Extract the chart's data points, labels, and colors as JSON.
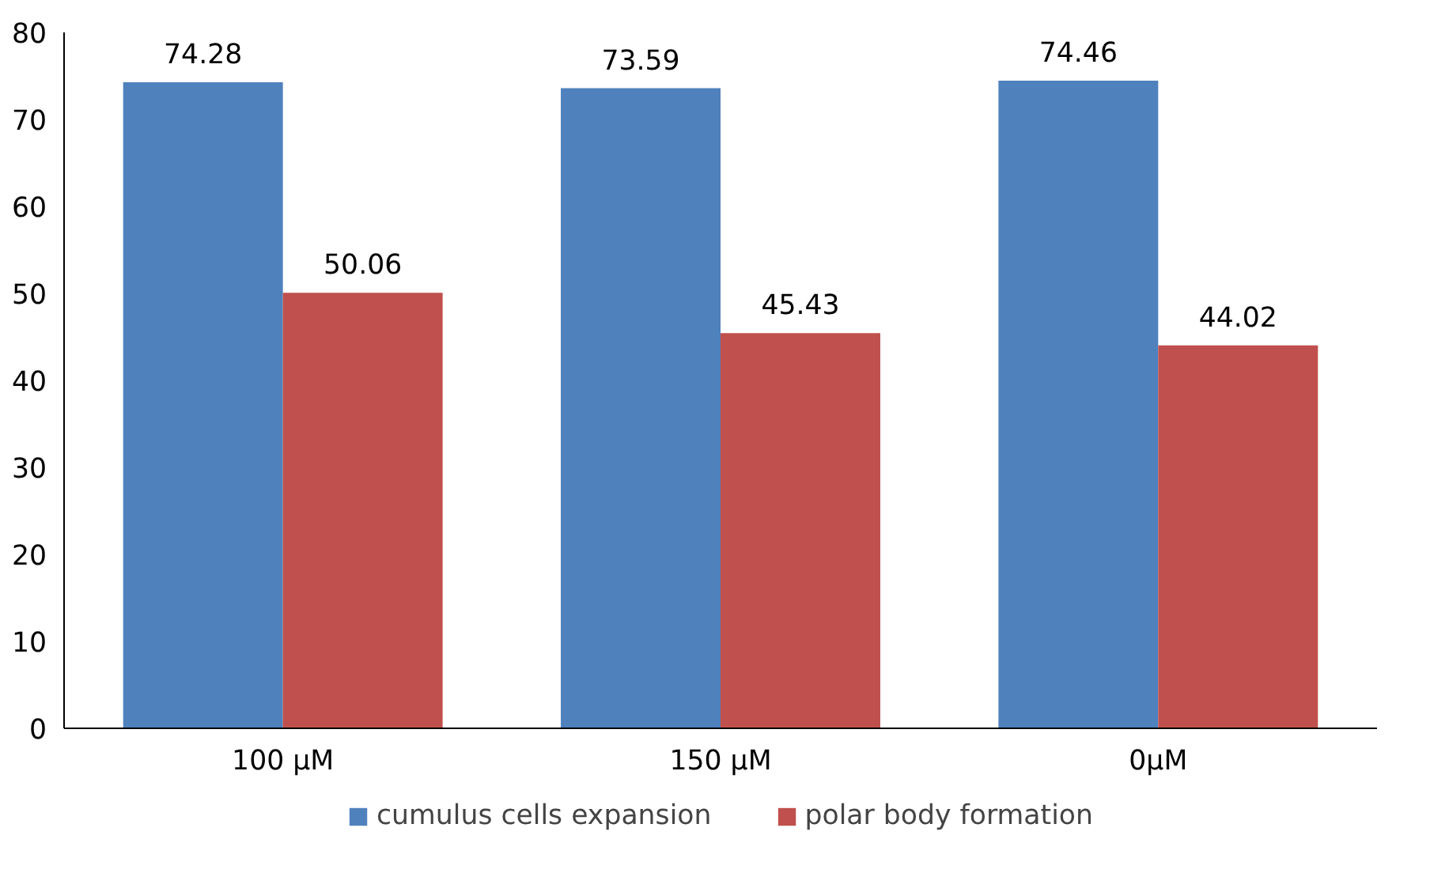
{
  "chart_data": {
    "type": "bar",
    "categories": [
      "100 µM",
      "150 µM",
      "0µM"
    ],
    "series": [
      {
        "name": "cumulus cells expansion",
        "color": "#4f81bd",
        "values": [
          74.28,
          73.59,
          74.46
        ]
      },
      {
        "name": "polar body formation",
        "color": "#c0504d",
        "values": [
          50.06,
          45.43,
          44.02
        ]
      }
    ],
    "ylim": [
      0,
      80
    ],
    "yticks": [
      0,
      10,
      20,
      30,
      40,
      50,
      60,
      70,
      80
    ],
    "grid": false,
    "legend": "bottom",
    "data_labels": true
  }
}
